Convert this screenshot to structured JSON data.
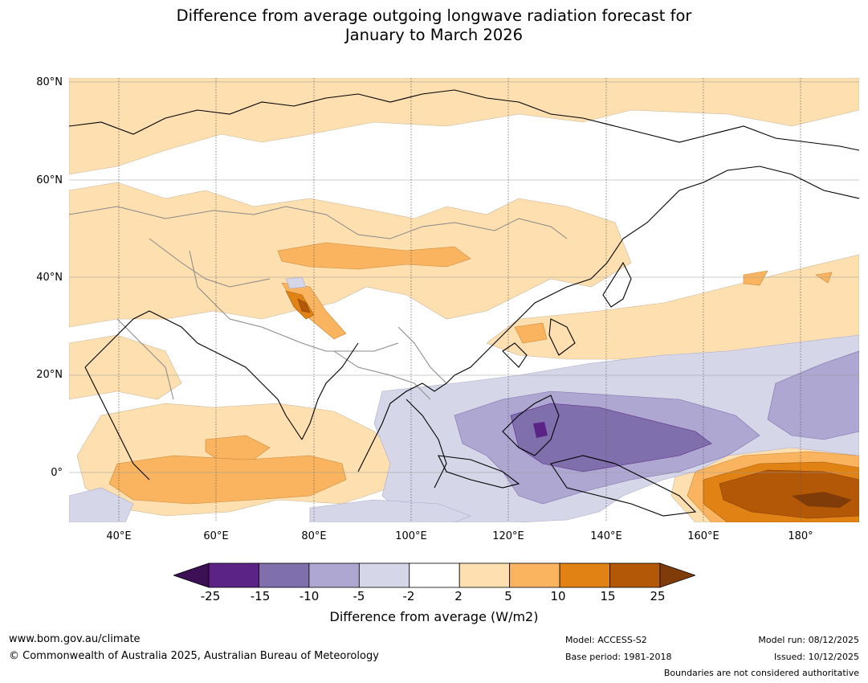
{
  "title_line1": "Difference from average outgoing longwave radiation forecast for",
  "title_line2": "January to March 2026",
  "map": {
    "lat_labels": [
      "80°N",
      "60°N",
      "40°N",
      "20°N",
      "0°"
    ],
    "lon_labels": [
      "40°E",
      "60°E",
      "80°E",
      "100°E",
      "120°E",
      "140°E",
      "160°E",
      "180°"
    ]
  },
  "legend": {
    "ticks": [
      "-25",
      "-15",
      "-10",
      "-5",
      "-2",
      "2",
      "5",
      "10",
      "15",
      "25"
    ],
    "colors": [
      "#3d0f55",
      "#5a2385",
      "#7f6fac",
      "#ada7d1",
      "#d6d6e9",
      "#ffffff",
      "#fddfb0",
      "#fab45f",
      "#e08214",
      "#b35806",
      "#7f3b08"
    ],
    "label": "Difference from average (W/m2)"
  },
  "footer": {
    "url": "www.bom.gov.au/climate",
    "copyright": "© Commonwealth of Australia 2025, Australian Bureau of Meteorology",
    "model": "Model: ACCESS-S2",
    "base_period": "Base period: 1981-2018",
    "model_run": "Model run: 08/12/2025",
    "issued": "Issued: 10/12/2025",
    "disclaimer": "Boundaries are not considered authoritative"
  }
}
